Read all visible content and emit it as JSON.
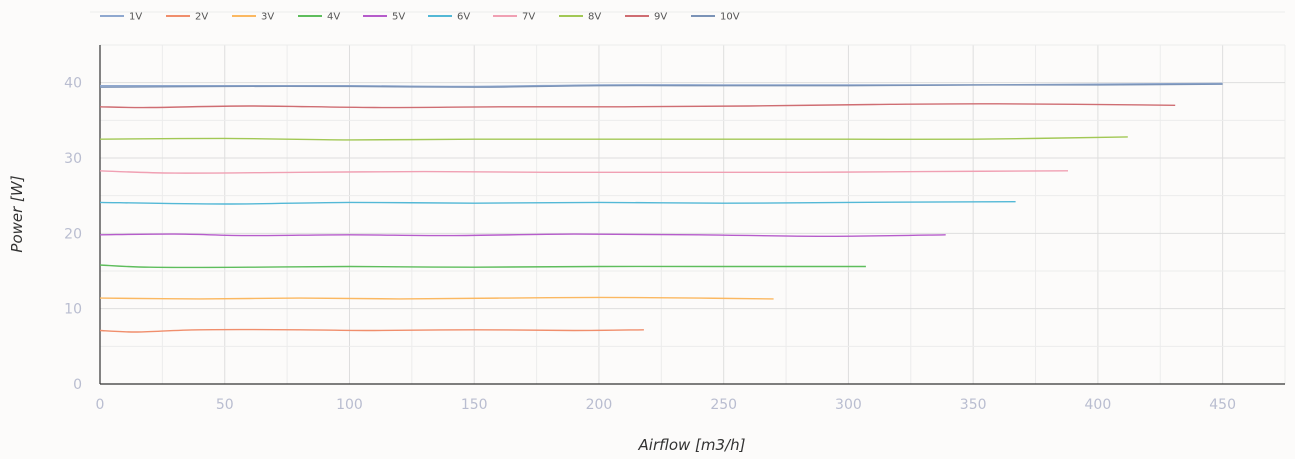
{
  "chart_data": {
    "type": "line",
    "title": "",
    "xlabel": "Airflow [m3/h]",
    "ylabel": "Power [W]",
    "xlim": [
      0,
      475
    ],
    "ylim": [
      0,
      45
    ],
    "x_ticks": [
      0,
      50,
      100,
      150,
      200,
      250,
      300,
      350,
      400,
      450
    ],
    "y_ticks": [
      0,
      10,
      20,
      30,
      40
    ],
    "grid": true,
    "legend_position": "top-left",
    "series": [
      {
        "name": "1V",
        "color": "#8fa8cf",
        "x": [
          0,
          50,
          100,
          150,
          200,
          250,
          300,
          350,
          400,
          450
        ],
        "y": [
          39.6,
          39.6,
          39.6,
          39.5,
          39.7,
          39.7,
          39.7,
          39.7,
          39.8,
          39.9
        ]
      },
      {
        "name": "2V",
        "color": "#f08e6c",
        "x": [
          0,
          15,
          40,
          80,
          110,
          150,
          190,
          218
        ],
        "y": [
          7.1,
          6.9,
          7.2,
          7.2,
          7.1,
          7.2,
          7.1,
          7.2
        ]
      },
      {
        "name": "3V",
        "color": "#fbb861",
        "x": [
          0,
          40,
          80,
          120,
          160,
          200,
          240,
          270
        ],
        "y": [
          11.4,
          11.3,
          11.4,
          11.3,
          11.4,
          11.5,
          11.4,
          11.3
        ]
      },
      {
        "name": "4V",
        "color": "#5ebd5c",
        "x": [
          0,
          20,
          60,
          100,
          150,
          200,
          250,
          307
        ],
        "y": [
          15.8,
          15.5,
          15.5,
          15.6,
          15.5,
          15.6,
          15.6,
          15.6
        ]
      },
      {
        "name": "5V",
        "color": "#b65ccb",
        "x": [
          0,
          30,
          60,
          100,
          140,
          190,
          240,
          290,
          339
        ],
        "y": [
          19.8,
          19.9,
          19.7,
          19.8,
          19.7,
          19.9,
          19.8,
          19.6,
          19.8
        ]
      },
      {
        "name": "6V",
        "color": "#53b8d6",
        "x": [
          0,
          50,
          100,
          150,
          200,
          250,
          300,
          367
        ],
        "y": [
          24.1,
          23.9,
          24.1,
          24.0,
          24.1,
          24.0,
          24.1,
          24.2
        ]
      },
      {
        "name": "7V",
        "color": "#f0a0b3",
        "x": [
          0,
          30,
          80,
          130,
          180,
          230,
          280,
          330,
          388
        ],
        "y": [
          28.3,
          28.0,
          28.1,
          28.2,
          28.1,
          28.1,
          28.1,
          28.2,
          28.3
        ]
      },
      {
        "name": "8V",
        "color": "#a2c855",
        "x": [
          0,
          50,
          100,
          150,
          200,
          250,
          300,
          350,
          412
        ],
        "y": [
          32.5,
          32.6,
          32.4,
          32.5,
          32.5,
          32.5,
          32.5,
          32.5,
          32.8
        ]
      },
      {
        "name": "9V",
        "color": "#cf6d72",
        "x": [
          0,
          20,
          60,
          110,
          160,
          210,
          260,
          310,
          360,
          431
        ],
        "y": [
          36.8,
          36.7,
          36.9,
          36.7,
          36.8,
          36.8,
          36.9,
          37.1,
          37.2,
          37.0
        ]
      },
      {
        "name": "10V",
        "color": "#7b93b7",
        "x": [
          0,
          50,
          100,
          150,
          200,
          250,
          300,
          350,
          400,
          450
        ],
        "y": [
          39.4,
          39.5,
          39.5,
          39.4,
          39.6,
          39.6,
          39.6,
          39.7,
          39.7,
          39.8
        ]
      }
    ]
  }
}
